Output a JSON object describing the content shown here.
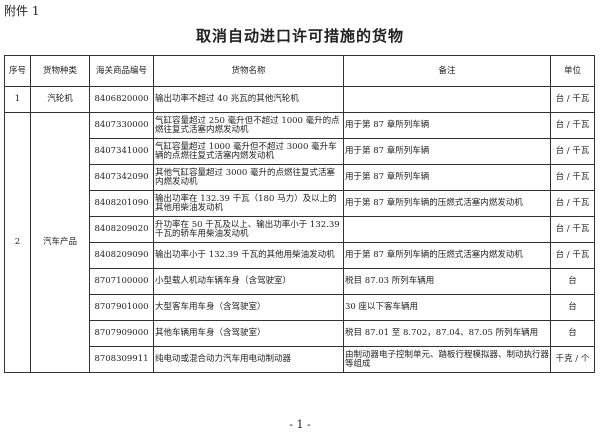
{
  "attachment": "附件 1",
  "title": "取消自动进口许可措施的货物",
  "headers": [
    "序号",
    "货物种类",
    "海关商品编号",
    "货物名称",
    "备注",
    "单位"
  ],
  "rows": [
    {
      "no": "1",
      "category": "汽轮机",
      "code": "8406820000",
      "name": "输出功率不超过 40 兆瓦的其他汽轮机",
      "remark": "",
      "unit": "台 / 千瓦"
    },
    {
      "no": "2",
      "category": "汽车产品",
      "code": "8407330000",
      "name": "气缸容量超过 250 毫升但不超过 1000 毫升的点燃往复式活塞内燃发动机",
      "remark": "用于第 87 章所列车辆",
      "unit": "台 / 千瓦"
    },
    {
      "code": "8407341000",
      "name": "气缸容量超过 1000 毫升但不超过 3000 毫升车辆的点燃往复式活塞内燃发动机",
      "remark": "用于第 87 章所列车辆",
      "unit": "台 / 千瓦"
    },
    {
      "code": "8407342090",
      "name": "其他气缸容量超过 3000 毫升的点燃往复式活塞内燃发动机",
      "remark": "用于第 87 章所列车辆",
      "unit": "台 / 千瓦"
    },
    {
      "code": "8408201090",
      "name": "输出功率在 132.39 千瓦（180 马力）及以上的其他用柴油发动机",
      "remark": "用于第 87 章所列车辆的压燃式活塞内燃发动机",
      "unit": "台 / 千瓦"
    },
    {
      "code": "8408209020",
      "name": "升功率在 50 千瓦及以上、输出功率小于 132.39 千瓦的轿车用柴油发动机",
      "remark": "",
      "unit": "台 / 千瓦"
    },
    {
      "code": "8408209090",
      "name": "输出功率小于 132.39 千瓦的其他用柴油发动机",
      "remark": "用于第 87 章所列车辆的压燃式活塞内燃发动机",
      "unit": "台 / 千瓦"
    },
    {
      "code": "8707100000",
      "name": "小型载人机动车辆车身（含驾驶室）",
      "remark": "税目 87.03 所列车辆用",
      "unit": "台"
    },
    {
      "code": "8707901000",
      "name": "大型客车用车身（含驾驶室）",
      "remark": "30 座以下客车辆用",
      "unit": "台"
    },
    {
      "code": "8707909000",
      "name": "其他车辆用车身（含驾驶室）",
      "remark": "税目 87.01 至 8.702，87.04、87.05 所列车辆用",
      "unit": "台"
    },
    {
      "code": "8708309911",
      "name": "纯电动或混合动力汽车用电动制动器",
      "remark": "由制动器电子控制单元、踏板行程模拟器、制动执行器等组成",
      "unit": "千克 / 个"
    }
  ],
  "footer": "- 1 -"
}
